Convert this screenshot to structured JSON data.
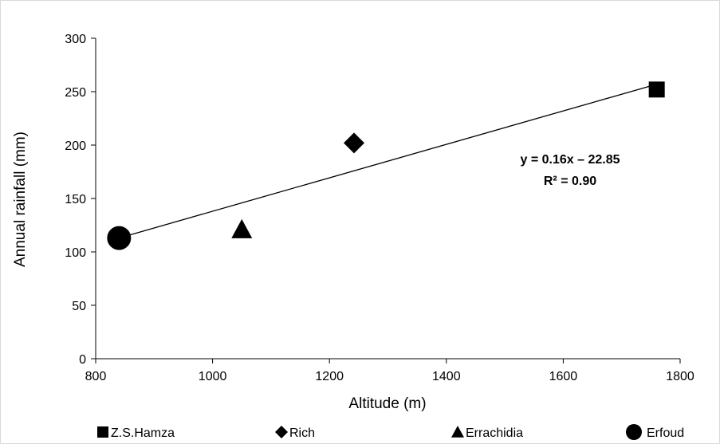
{
  "chart_data": {
    "type": "scatter",
    "title": "",
    "xlabel": "Altitude (m)",
    "ylabel": "Annual rainfall (mm)",
    "xlim": [
      800,
      1800
    ],
    "ylim": [
      0,
      300
    ],
    "xticks": [
      800,
      1000,
      1200,
      1400,
      1600,
      1800
    ],
    "yticks": [
      0,
      50,
      100,
      150,
      200,
      250,
      300
    ],
    "grid": false,
    "legend_position": "bottom",
    "series": [
      {
        "name": "Z.S.Hamza",
        "marker": "square",
        "x": [
          1760
        ],
        "y": [
          252
        ]
      },
      {
        "name": "Rich",
        "marker": "diamond",
        "x": [
          1242
        ],
        "y": [
          202
        ]
      },
      {
        "name": "Errachidia",
        "marker": "triangle",
        "x": [
          1050
        ],
        "y": [
          121
        ]
      },
      {
        "name": "Erfoud",
        "marker": "circle",
        "x": [
          840
        ],
        "y": [
          113
        ]
      }
    ],
    "trendline": {
      "x": [
        840,
        1760
      ],
      "y": [
        113,
        257
      ],
      "equation": "y = 0.16x – 22.85",
      "r2": "R² = 0.90"
    },
    "colors": {
      "markers": "#000000",
      "axis": "#000000",
      "border": "#d9d9d9"
    }
  }
}
